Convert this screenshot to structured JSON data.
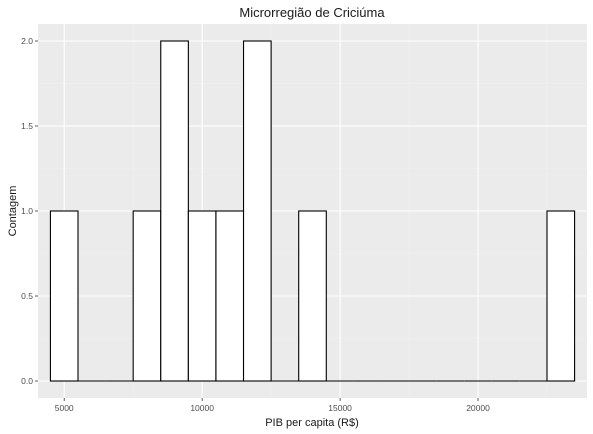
{
  "chart_data": {
    "type": "bar",
    "title": "Microrregião de  Criciúma",
    "xlabel": "PIB per capita (R$)",
    "ylabel": "Contagem",
    "xlim": [
      4050,
      23950
    ],
    "ylim": [
      -0.1,
      2.1
    ],
    "x_ticks": [
      5000,
      10000,
      15000,
      20000
    ],
    "y_ticks": [
      0.0,
      0.5,
      1.0,
      1.5,
      2.0
    ],
    "x_tick_labels": [
      "5000",
      "10000",
      "15000",
      "20000"
    ],
    "y_tick_labels": [
      "0.0",
      "0.5",
      "1.0",
      "1.5",
      "2.0"
    ],
    "bin_width": 1000,
    "bins": [
      {
        "x0": 4500,
        "x1": 5500,
        "count": 1
      },
      {
        "x0": 5500,
        "x1": 6500,
        "count": 0
      },
      {
        "x0": 6500,
        "x1": 7500,
        "count": 0
      },
      {
        "x0": 7500,
        "x1": 8500,
        "count": 1
      },
      {
        "x0": 8500,
        "x1": 9500,
        "count": 2
      },
      {
        "x0": 9500,
        "x1": 10500,
        "count": 1
      },
      {
        "x0": 10500,
        "x1": 11500,
        "count": 1
      },
      {
        "x0": 11500,
        "x1": 12500,
        "count": 2
      },
      {
        "x0": 12500,
        "x1": 13500,
        "count": 0
      },
      {
        "x0": 13500,
        "x1": 14500,
        "count": 1
      },
      {
        "x0": 14500,
        "x1": 15500,
        "count": 0
      },
      {
        "x0": 15500,
        "x1": 16500,
        "count": 0
      },
      {
        "x0": 16500,
        "x1": 17500,
        "count": 0
      },
      {
        "x0": 17500,
        "x1": 18500,
        "count": 0
      },
      {
        "x0": 18500,
        "x1": 19500,
        "count": 0
      },
      {
        "x0": 19500,
        "x1": 20500,
        "count": 0
      },
      {
        "x0": 20500,
        "x1": 21500,
        "count": 0
      },
      {
        "x0": 21500,
        "x1": 22500,
        "count": 0
      },
      {
        "x0": 22500,
        "x1": 23500,
        "count": 1
      }
    ],
    "grid": true,
    "legend": "none",
    "colors": {
      "panel_background": "#ebebeb",
      "grid_major": "#ffffff",
      "grid_minor": "#f2f2f2",
      "bar_fill": "#ffffff",
      "bar_stroke": "#000000"
    }
  }
}
